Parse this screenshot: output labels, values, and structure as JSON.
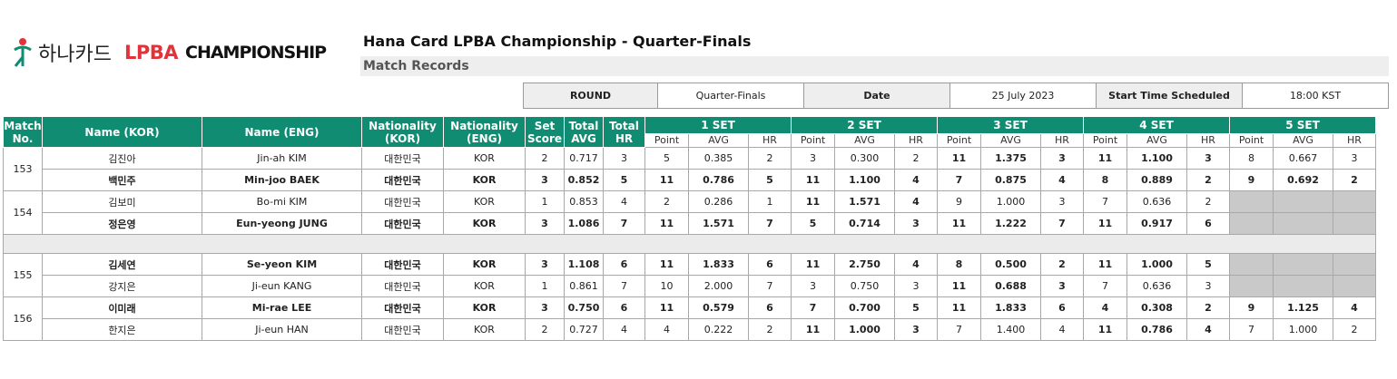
{
  "logo": {
    "korean_text": "하나카드",
    "brand": "LPBA",
    "suffix": "CHAMPIONSHIP"
  },
  "title": "Hana Card LPBA Championship - Quarter-Finals",
  "subtitle": "Match Records",
  "info": {
    "round_label": "ROUND",
    "round_value": "Quarter-Finals",
    "date_label": "Date",
    "date_value": "25 July 2023",
    "time_label": "Start Time Scheduled",
    "time_value": "18:00 KST"
  },
  "headers": {
    "match_no": "Match No.",
    "name_kor": "Name (KOR)",
    "name_eng": "Name (ENG)",
    "nat_kor": "Nationality (KOR)",
    "nat_eng": "Nationality (ENG)",
    "set_score": "Set Score",
    "total_avg": "Total AVG",
    "total_hr": "Total HR",
    "sets": [
      "1 SET",
      "2 SET",
      "3 SET",
      "4 SET",
      "5 SET"
    ],
    "set_cols": [
      "Point",
      "AVG",
      "HR"
    ]
  },
  "matches": [
    {
      "no": "153",
      "players": [
        {
          "win": false,
          "name_kor": "김진아",
          "name_eng": "Jin-ah KIM",
          "nat_kor": "대한민국",
          "nat_eng": "KOR",
          "set_score": "2",
          "total_avg": "0.717",
          "total_hr": "3",
          "sets": [
            {
              "p": "5",
              "avg": "0.385",
              "hr": "2",
              "won": false
            },
            {
              "p": "3",
              "avg": "0.300",
              "hr": "2",
              "won": false
            },
            {
              "p": "11",
              "avg": "1.375",
              "hr": "3",
              "won": true
            },
            {
              "p": "11",
              "avg": "1.100",
              "hr": "3",
              "won": true
            },
            {
              "p": "8",
              "avg": "0.667",
              "hr": "3",
              "won": false
            }
          ]
        },
        {
          "win": true,
          "name_kor": "백민주",
          "name_eng": "Min-joo BAEK",
          "nat_kor": "대한민국",
          "nat_eng": "KOR",
          "set_score": "3",
          "total_avg": "0.852",
          "total_hr": "5",
          "sets": [
            {
              "p": "11",
              "avg": "0.786",
              "hr": "5",
              "won": true
            },
            {
              "p": "11",
              "avg": "1.100",
              "hr": "4",
              "won": true
            },
            {
              "p": "7",
              "avg": "0.875",
              "hr": "4",
              "won": false
            },
            {
              "p": "8",
              "avg": "0.889",
              "hr": "2",
              "won": false
            },
            {
              "p": "9",
              "avg": "0.692",
              "hr": "2",
              "won": true
            }
          ]
        }
      ]
    },
    {
      "no": "154",
      "players": [
        {
          "win": false,
          "name_kor": "김보미",
          "name_eng": "Bo-mi KIM",
          "nat_kor": "대한민국",
          "nat_eng": "KOR",
          "set_score": "1",
          "total_avg": "0.853",
          "total_hr": "4",
          "sets": [
            {
              "p": "2",
              "avg": "0.286",
              "hr": "1",
              "won": false
            },
            {
              "p": "11",
              "avg": "1.571",
              "hr": "4",
              "won": true
            },
            {
              "p": "9",
              "avg": "1.000",
              "hr": "3",
              "won": false
            },
            {
              "p": "7",
              "avg": "0.636",
              "hr": "2",
              "won": false
            },
            null
          ]
        },
        {
          "win": true,
          "name_kor": "정은영",
          "name_eng": "Eun-yeong JUNG",
          "nat_kor": "대한민국",
          "nat_eng": "KOR",
          "set_score": "3",
          "total_avg": "1.086",
          "total_hr": "7",
          "sets": [
            {
              "p": "11",
              "avg": "1.571",
              "hr": "7",
              "won": true
            },
            {
              "p": "5",
              "avg": "0.714",
              "hr": "3",
              "won": false
            },
            {
              "p": "11",
              "avg": "1.222",
              "hr": "7",
              "won": true
            },
            {
              "p": "11",
              "avg": "0.917",
              "hr": "6",
              "won": true
            },
            null
          ]
        }
      ]
    },
    {
      "no": "155",
      "players": [
        {
          "win": true,
          "name_kor": "김세연",
          "name_eng": "Se-yeon KIM",
          "nat_kor": "대한민국",
          "nat_eng": "KOR",
          "set_score": "3",
          "total_avg": "1.108",
          "total_hr": "6",
          "sets": [
            {
              "p": "11",
              "avg": "1.833",
              "hr": "6",
              "won": true
            },
            {
              "p": "11",
              "avg": "2.750",
              "hr": "4",
              "won": true
            },
            {
              "p": "8",
              "avg": "0.500",
              "hr": "2",
              "won": false
            },
            {
              "p": "11",
              "avg": "1.000",
              "hr": "5",
              "won": true
            },
            null
          ]
        },
        {
          "win": false,
          "name_kor": "강지은",
          "name_eng": "Ji-eun KANG",
          "nat_kor": "대한민국",
          "nat_eng": "KOR",
          "set_score": "1",
          "total_avg": "0.861",
          "total_hr": "7",
          "sets": [
            {
              "p": "10",
              "avg": "2.000",
              "hr": "7",
              "won": false
            },
            {
              "p": "3",
              "avg": "0.750",
              "hr": "3",
              "won": false
            },
            {
              "p": "11",
              "avg": "0.688",
              "hr": "3",
              "won": true
            },
            {
              "p": "7",
              "avg": "0.636",
              "hr": "3",
              "won": false
            },
            null
          ]
        }
      ]
    },
    {
      "no": "156",
      "players": [
        {
          "win": true,
          "name_kor": "이미래",
          "name_eng": "Mi-rae LEE",
          "nat_kor": "대한민국",
          "nat_eng": "KOR",
          "set_score": "3",
          "total_avg": "0.750",
          "total_hr": "6",
          "sets": [
            {
              "p": "11",
              "avg": "0.579",
              "hr": "6",
              "won": true
            },
            {
              "p": "7",
              "avg": "0.700",
              "hr": "5",
              "won": false
            },
            {
              "p": "11",
              "avg": "1.833",
              "hr": "6",
              "won": true
            },
            {
              "p": "4",
              "avg": "0.308",
              "hr": "2",
              "won": false
            },
            {
              "p": "9",
              "avg": "1.125",
              "hr": "4",
              "won": true
            }
          ]
        },
        {
          "win": false,
          "name_kor": "한지은",
          "name_eng": "Ji-eun HAN",
          "nat_kor": "대한민국",
          "nat_eng": "KOR",
          "set_score": "2",
          "total_avg": "0.727",
          "total_hr": "4",
          "sets": [
            {
              "p": "4",
              "avg": "0.222",
              "hr": "2",
              "won": false
            },
            {
              "p": "11",
              "avg": "1.000",
              "hr": "3",
              "won": true
            },
            {
              "p": "7",
              "avg": "1.400",
              "hr": "4",
              "won": false
            },
            {
              "p": "11",
              "avg": "0.786",
              "hr": "4",
              "won": true
            },
            {
              "p": "7",
              "avg": "1.000",
              "hr": "2",
              "won": false
            }
          ]
        }
      ]
    }
  ],
  "colors": {
    "header_green": "#0f8c72",
    "brand_red": "#e2333a",
    "empty_cell": "#c9c9c9"
  }
}
